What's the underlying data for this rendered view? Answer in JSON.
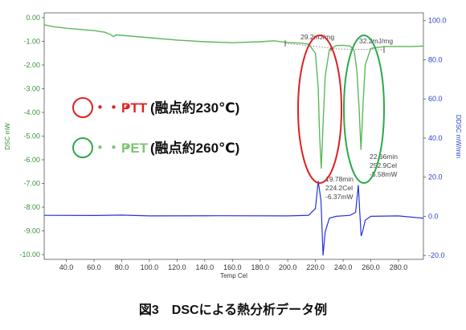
{
  "chart_data": {
    "type": "line",
    "caption": "図3　DSCによる熱分析データ例",
    "xlabel": "Temp Cel",
    "ylabel_left": "DSC mW",
    "ylabel_right": "DDSC mW/min",
    "xlim": [
      24,
      298
    ],
    "ylim_left": [
      -10.2,
      0.2
    ],
    "ylim_right": [
      -22,
      104
    ],
    "x_ticks": [
      "40.0",
      "60.0",
      "80.0",
      "100.0",
      "120.0",
      "140.0",
      "160.0",
      "180.0",
      "200.0",
      "220.0",
      "240.0",
      "260.0",
      "280.0"
    ],
    "x_tick_values": [
      40,
      60,
      80,
      100,
      120,
      140,
      160,
      180,
      200,
      220,
      240,
      260,
      280
    ],
    "y_left_ticks": [
      "0.00",
      "-1.00",
      "-2.00",
      "-3.00",
      "-4.00",
      "-5.00",
      "-6.00",
      "-7.00",
      "-8.00",
      "-9.00",
      "-10.00"
    ],
    "y_left_tick_values": [
      0,
      -1,
      -2,
      -3,
      -4,
      -5,
      -6,
      -7,
      -8,
      -9,
      -10
    ],
    "y_right_ticks": [
      "100.0",
      "80.0",
      "60.0",
      "40.0",
      "20.0",
      "0.0",
      "-20.0"
    ],
    "y_right_tick_values": [
      100,
      80,
      60,
      40,
      20,
      0,
      -20
    ],
    "colors": {
      "dsc": "#5cb85c",
      "ddsc": "#2233dd",
      "ptt": "#e02020",
      "pet": "#2ea84a"
    },
    "series": [
      {
        "axis": "left",
        "x": [
          24,
          30,
          40,
          50,
          60,
          68,
          72,
          74,
          76,
          80,
          100,
          120,
          140,
          160,
          180,
          190,
          200,
          210,
          215,
          220,
          222,
          223,
          224.2,
          225.5,
          227,
          230,
          235,
          240,
          245,
          248,
          250,
          251.5,
          252.9,
          254.5,
          256,
          260,
          270,
          280,
          290,
          298
        ],
        "y": [
          -0.3,
          -0.38,
          -0.45,
          -0.5,
          -0.55,
          -0.62,
          -0.72,
          -0.8,
          -0.73,
          -0.75,
          -0.85,
          -0.95,
          -1.02,
          -1.06,
          -1.02,
          -0.98,
          -1.05,
          -1.08,
          -1.12,
          -1.5,
          -3.0,
          -5.0,
          -6.37,
          -4.5,
          -2.5,
          -1.35,
          -1.18,
          -1.17,
          -1.2,
          -1.4,
          -2.3,
          -3.8,
          -5.58,
          -3.5,
          -2.0,
          -1.3,
          -1.22,
          -1.22,
          -1.22,
          -1.2
        ]
      },
      {
        "axis": "right",
        "x": [
          24,
          60,
          80,
          100,
          150,
          200,
          215,
          220,
          222,
          224,
          225.5,
          227,
          230,
          235,
          245,
          249,
          251,
          252,
          253,
          254,
          256,
          260,
          280,
          298
        ],
        "y": [
          0.5,
          0.4,
          0.6,
          0.2,
          0.3,
          0.2,
          0.5,
          4,
          18,
          8,
          -20,
          -8,
          -1,
          0,
          0.5,
          2,
          16,
          2,
          -10,
          -8,
          -2,
          0,
          0.2,
          -1
        ]
      }
    ],
    "annotations": {
      "enthalpy_ptt": "29.2mJ/mg",
      "enthalpy_pet": "32.2mJ/mg",
      "peak_ptt": [
        "19.78min",
        "224.2Cel",
        "-6.37mW"
      ],
      "peak_pet": [
        "22.66min",
        "252.9Cel",
        "-5.58mW"
      ]
    },
    "legend": [
      {
        "marker": "・・・",
        "label": "PTT",
        "note": "(融点約230℃)"
      },
      {
        "marker": "・・・",
        "label": "PET",
        "note": "(融点約260℃)"
      }
    ]
  }
}
